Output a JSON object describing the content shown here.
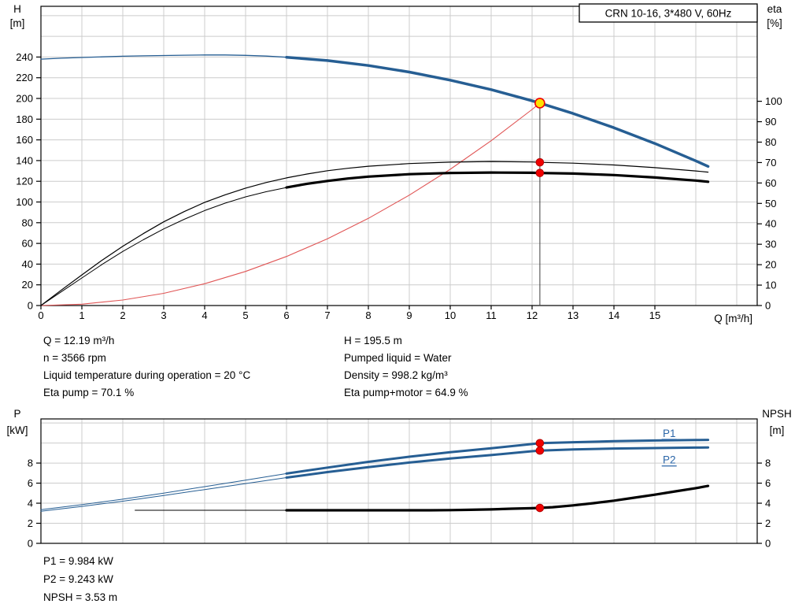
{
  "colors": {
    "grid": "#cccccc",
    "curve_blue": "#265e93",
    "curve_black": "#000000",
    "system_red": "#e05555",
    "marker_red": "#f00000",
    "marker_red_stroke": "#b40000",
    "duty_yellow": "#ffe100",
    "label_blue": "#2b66a8",
    "duty_line": "#3c3c3c"
  },
  "stats_top": {
    "left": [
      "Q = 12.19 m³/h",
      "n = 3566 rpm",
      "Liquid temperature during operation = 20 °C",
      "Eta pump = 70.1 %"
    ],
    "right": [
      "H = 195.5 m",
      "Pumped liquid = Water",
      "Density = 998.2 kg/m³",
      "Eta pump+motor = 64.9 %"
    ]
  },
  "stats_bottom": [
    "P1 = 9.984 kW",
    "P2 = 9.243 kW",
    "NPSH = 3.53 m"
  ],
  "chart_data": [
    {
      "name": "qh-eta-chart",
      "type": "line",
      "title": "CRN 10-16, 3*480 V, 60Hz",
      "x_axis": {
        "label": "Q [m³/h]",
        "min": 0,
        "max": 17.5,
        "tick_labels": [
          0,
          1,
          2,
          3,
          4,
          5,
          6,
          7,
          8,
          9,
          10,
          11,
          12,
          13,
          14,
          15
        ],
        "gridlines": [
          1,
          2,
          3,
          4,
          5,
          6,
          7,
          8,
          9,
          10,
          11,
          12,
          13,
          14,
          15,
          16,
          17
        ]
      },
      "y_left": {
        "label": [
          "H",
          "[m]"
        ],
        "min": 0,
        "max": 289,
        "tick_labels": [
          0,
          20,
          40,
          60,
          80,
          100,
          120,
          140,
          160,
          180,
          200,
          220,
          240
        ],
        "gridlines": [
          20,
          40,
          60,
          80,
          100,
          120,
          140,
          160,
          180,
          200,
          220,
          240,
          260,
          280
        ]
      },
      "y_right": {
        "label": [
          "eta",
          "[%]"
        ],
        "min": 0,
        "max": 146.5,
        "tick_labels": [
          0,
          10,
          20,
          30,
          40,
          50,
          60,
          70,
          80,
          90,
          100
        ]
      },
      "series": [
        {
          "name": "duty-flow-line",
          "axis": "left",
          "color": "#3c3c3c",
          "w": 1,
          "pts": [
            [
              12.19,
              0
            ],
            [
              12.19,
              195.5
            ]
          ]
        },
        {
          "name": "system-curve",
          "axis": "left",
          "color": "#e05555",
          "w": 1.1,
          "pts": [
            [
              0,
              0
            ],
            [
              1,
              1.3
            ],
            [
              2,
              5.3
            ],
            [
              3,
              11.8
            ],
            [
              4,
              21.1
            ],
            [
              5,
              32.9
            ],
            [
              6,
              47.4
            ],
            [
              7,
              64.5
            ],
            [
              8,
              84.2
            ],
            [
              9,
              106.6
            ],
            [
              10,
              131.6
            ],
            [
              11,
              159.2
            ],
            [
              12,
              189.4
            ],
            [
              12.19,
              195.5
            ]
          ]
        },
        {
          "name": "eta-pump-motor-curve-thin",
          "axis": "right",
          "color": "#000000",
          "w": 1,
          "pts": [
            [
              0,
              0
            ],
            [
              0.5,
              6.8
            ],
            [
              1,
              13.5
            ],
            [
              1.5,
              20.2
            ],
            [
              2,
              26.5
            ],
            [
              2.5,
              32.2
            ],
            [
              3,
              37.5
            ],
            [
              3.5,
              42.2
            ],
            [
              4,
              46.5
            ],
            [
              4.5,
              50.1
            ],
            [
              5,
              53.2
            ],
            [
              5.5,
              55.7
            ],
            [
              6,
              57.8
            ]
          ]
        },
        {
          "name": "eta-pump-motor-curve-bold",
          "axis": "right",
          "color": "#000000",
          "w": 3.2,
          "pts": [
            [
              6,
              57.8
            ],
            [
              6.5,
              59.6
            ],
            [
              7,
              61
            ],
            [
              7.5,
              62.2
            ],
            [
              8,
              63.1
            ],
            [
              9,
              64.3
            ],
            [
              10,
              64.9
            ],
            [
              11,
              65.1
            ],
            [
              12,
              65.0
            ],
            [
              12.19,
              64.9
            ],
            [
              13,
              64.6
            ],
            [
              14,
              63.9
            ],
            [
              15,
              62.7
            ],
            [
              16,
              61.2
            ],
            [
              16.3,
              60.6
            ]
          ]
        },
        {
          "name": "eta-pump-curve",
          "axis": "right",
          "color": "#000000",
          "w": 1.2,
          "pts": [
            [
              0,
              0
            ],
            [
              0.5,
              7.6
            ],
            [
              1,
              15
            ],
            [
              1.5,
              22.3
            ],
            [
              2,
              29
            ],
            [
              2.5,
              35.2
            ],
            [
              3,
              41
            ],
            [
              3.5,
              46
            ],
            [
              4,
              50.5
            ],
            [
              4.5,
              54.2
            ],
            [
              5,
              57.5
            ],
            [
              5.5,
              60.2
            ],
            [
              6,
              62.5
            ],
            [
              6.5,
              64.4
            ],
            [
              7,
              66
            ],
            [
              7.5,
              67.2
            ],
            [
              8,
              68.2
            ],
            [
              9,
              69.5
            ],
            [
              10,
              70.2
            ],
            [
              11,
              70.5
            ],
            [
              12,
              70.3
            ],
            [
              12.19,
              70.1
            ],
            [
              13,
              69.7
            ],
            [
              14,
              68.8
            ],
            [
              15,
              67.5
            ],
            [
              16,
              65.9
            ],
            [
              16.3,
              65.3
            ]
          ]
        },
        {
          "name": "head-curve-thin",
          "axis": "left",
          "color": "#265e93",
          "w": 1.3,
          "pts": [
            [
              0,
              238
            ],
            [
              0.5,
              238.9
            ],
            [
              1,
              239.6
            ],
            [
              1.5,
              240.2
            ],
            [
              2,
              240.8
            ],
            [
              2.5,
              241.2
            ],
            [
              3,
              241.5
            ],
            [
              3.5,
              241.8
            ],
            [
              4,
              242
            ],
            [
              4.5,
              242
            ],
            [
              5,
              241.6
            ],
            [
              5.5,
              240.9
            ],
            [
              6,
              239.8
            ]
          ]
        },
        {
          "name": "head-curve-bold",
          "axis": "left",
          "color": "#265e93",
          "w": 3.5,
          "pts": [
            [
              6,
              239.8
            ],
            [
              7,
              236.6
            ],
            [
              8,
              231.8
            ],
            [
              9,
              225.5
            ],
            [
              10,
              217.7
            ],
            [
              11,
              208.5
            ],
            [
              12,
              197.7
            ],
            [
              12.19,
              195.5
            ],
            [
              13,
              185.5
            ],
            [
              14,
              171.7
            ],
            [
              15,
              156.5
            ],
            [
              16,
              139.7
            ],
            [
              16.3,
              134.4
            ]
          ]
        }
      ],
      "markers": [
        {
          "name": "eta-pump-point",
          "x": 12.19,
          "y": 70.1,
          "axis": "right",
          "r": 4.8,
          "fill": "#f00000",
          "stroke": "#b40000",
          "sw": 1
        },
        {
          "name": "eta-pump-motor-point",
          "x": 12.19,
          "y": 64.9,
          "axis": "right",
          "r": 4.8,
          "fill": "#f00000",
          "stroke": "#b40000",
          "sw": 1
        },
        {
          "name": "duty-point",
          "x": 12.19,
          "y": 195.5,
          "axis": "left",
          "r": 6,
          "fill": "#ffe100",
          "stroke": "#f00000",
          "sw": 1.6
        }
      ]
    },
    {
      "name": "power-npsh-chart",
      "type": "line",
      "x_axis": {
        "min": 0,
        "max": 17.5,
        "tick_labels": [],
        "gridlines": [
          1,
          2,
          3,
          4,
          5,
          6,
          7,
          8,
          9,
          10,
          11,
          12,
          13,
          14,
          15,
          16,
          17
        ]
      },
      "y_left": {
        "label": [
          "P",
          "[kW]"
        ],
        "min": 0,
        "max": 12.4,
        "tick_labels": [
          0,
          2,
          4,
          6,
          8
        ],
        "gridlines": [
          2,
          4,
          6,
          8,
          10,
          12
        ]
      },
      "y_right": {
        "label": [
          "NPSH",
          "[m]"
        ],
        "min": 0,
        "max": 12.4,
        "tick_labels": [
          0,
          2,
          4,
          6,
          8
        ]
      },
      "series": [
        {
          "name": "npsh-curve-thin",
          "axis": "right",
          "color": "#000000",
          "w": 1,
          "pts": [
            [
              2.3,
              3.3
            ],
            [
              6,
              3.3
            ]
          ]
        },
        {
          "name": "npsh-curve-bold",
          "axis": "right",
          "color": "#000000",
          "w": 3.2,
          "pts": [
            [
              6,
              3.3
            ],
            [
              9.5,
              3.3
            ],
            [
              10,
              3.31
            ],
            [
              10.5,
              3.34
            ],
            [
              11,
              3.38
            ],
            [
              11.5,
              3.45
            ],
            [
              12,
              3.5
            ],
            [
              12.19,
              3.53
            ],
            [
              12.5,
              3.6
            ],
            [
              13,
              3.78
            ],
            [
              13.5,
              4.0
            ],
            [
              14,
              4.25
            ],
            [
              14.5,
              4.55
            ],
            [
              15,
              4.85
            ],
            [
              15.5,
              5.18
            ],
            [
              16,
              5.5
            ],
            [
              16.3,
              5.72
            ]
          ]
        },
        {
          "name": "p2-curve-thin",
          "axis": "left",
          "color": "#265e93",
          "w": 1,
          "pts": [
            [
              0,
              3.2
            ],
            [
              1,
              3.68
            ],
            [
              2,
              4.2
            ],
            [
              3,
              4.76
            ],
            [
              4,
              5.36
            ],
            [
              5,
              5.96
            ],
            [
              6,
              6.55
            ]
          ]
        },
        {
          "name": "p2-curve-bold",
          "axis": "left",
          "color": "#265e93",
          "w": 3,
          "pts": [
            [
              6,
              6.55
            ],
            [
              7,
              7.1
            ],
            [
              8,
              7.6
            ],
            [
              9,
              8.05
            ],
            [
              10,
              8.45
            ],
            [
              11,
              8.8
            ],
            [
              12,
              9.18
            ],
            [
              12.19,
              9.243
            ],
            [
              13,
              9.36
            ],
            [
              14,
              9.45
            ],
            [
              15,
              9.5
            ],
            [
              16,
              9.54
            ],
            [
              16.3,
              9.55
            ]
          ]
        },
        {
          "name": "p1-curve-thin",
          "axis": "left",
          "color": "#265e93",
          "w": 1,
          "pts": [
            [
              0,
              3.35
            ],
            [
              1,
              3.85
            ],
            [
              2,
              4.4
            ],
            [
              3,
              5.0
            ],
            [
              4,
              5.65
            ],
            [
              5,
              6.3
            ],
            [
              6,
              6.95
            ]
          ]
        },
        {
          "name": "p1-curve-bold",
          "axis": "left",
          "color": "#265e93",
          "w": 3,
          "pts": [
            [
              6,
              6.95
            ],
            [
              7,
              7.55
            ],
            [
              8,
              8.12
            ],
            [
              9,
              8.63
            ],
            [
              10,
              9.08
            ],
            [
              11,
              9.48
            ],
            [
              12,
              9.9
            ],
            [
              12.19,
              9.984
            ],
            [
              13,
              10.08
            ],
            [
              14,
              10.18
            ],
            [
              15,
              10.25
            ],
            [
              16,
              10.3
            ],
            [
              16.3,
              10.31
            ]
          ]
        }
      ],
      "markers": [
        {
          "name": "p1-point",
          "x": 12.19,
          "y": 9.984,
          "axis": "left",
          "r": 4.8,
          "fill": "#f00000",
          "stroke": "#b40000",
          "sw": 1
        },
        {
          "name": "p2-point",
          "x": 12.19,
          "y": 9.243,
          "axis": "left",
          "r": 4.8,
          "fill": "#f00000",
          "stroke": "#b40000",
          "sw": 1
        },
        {
          "name": "npsh-point",
          "x": 12.19,
          "y": 3.53,
          "axis": "right",
          "r": 4.8,
          "fill": "#f00000",
          "stroke": "#b40000",
          "sw": 1
        }
      ],
      "annotations": [
        {
          "name": "p1-label",
          "text": "P1",
          "x": 15.35,
          "y": 10.95,
          "color": "#2b66a8",
          "underline": true
        },
        {
          "name": "p2-label",
          "text": "P2",
          "x": 15.35,
          "y": 8.3,
          "color": "#2b66a8",
          "underline": true
        }
      ]
    }
  ]
}
